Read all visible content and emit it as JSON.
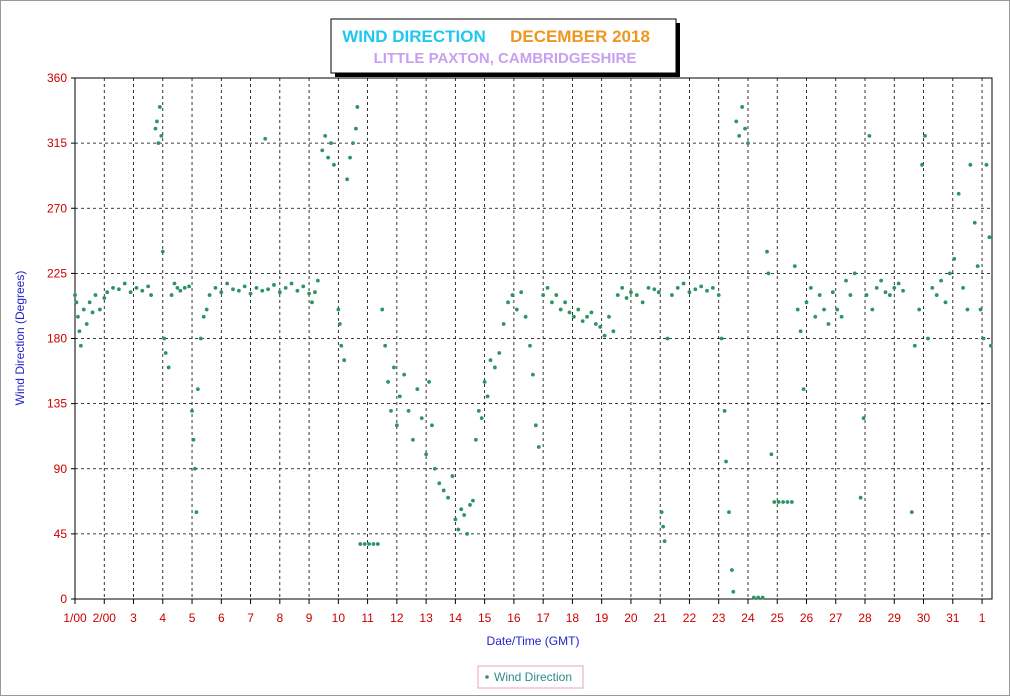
{
  "chart_data": {
    "type": "scatter",
    "title": "WIND DIRECTION",
    "period": "DECEMBER 2018",
    "subtitle": "LITTLE PAXTON, CAMBRIDGESHIRE",
    "title_color": "#1ec8f0",
    "period_color": "#f0961e",
    "subtitle_color": "#c8a0f0",
    "xlabel": "Date/Time (GMT)",
    "ylabel": "Wind Direction (Degrees)",
    "xlim": [
      1,
      32.34
    ],
    "ylim": [
      0,
      360
    ],
    "xticks": [
      {
        "value": 1,
        "label": "1/00"
      },
      {
        "value": 2,
        "label": "2/00"
      },
      3,
      4,
      5,
      6,
      7,
      8,
      9,
      10,
      11,
      12,
      13,
      14,
      15,
      16,
      17,
      18,
      19,
      20,
      21,
      22,
      23,
      24,
      25,
      26,
      27,
      28,
      29,
      30,
      31,
      {
        "value": 32,
        "label": "1"
      }
    ],
    "yticks": [
      0,
      45,
      90,
      135,
      180,
      225,
      270,
      315,
      360
    ],
    "grid": true,
    "legend": "bottom",
    "x": [
      1.0,
      1.05,
      1.1,
      1.15,
      1.2,
      1.3,
      1.4,
      1.5,
      1.6,
      1.7,
      1.85,
      2.0,
      2.1,
      2.3,
      2.5,
      2.7,
      2.9,
      3.1,
      3.3,
      3.5,
      3.6,
      3.75,
      3.8,
      3.85,
      3.9,
      3.95,
      4.0,
      4.05,
      4.1,
      4.2,
      4.3,
      4.4,
      4.5,
      4.6,
      4.75,
      4.9,
      5.0,
      5.05,
      5.1,
      5.15,
      5.2,
      5.3,
      5.4,
      5.5,
      5.6,
      5.8,
      6.0,
      6.2,
      6.4,
      6.6,
      6.8,
      7.0,
      7.2,
      7.4,
      7.5,
      7.6,
      7.8,
      8.0,
      8.2,
      8.4,
      8.6,
      8.8,
      9.0,
      9.1,
      9.2,
      9.3,
      9.45,
      9.55,
      9.65,
      9.75,
      9.85,
      10.0,
      10.05,
      10.1,
      10.2,
      10.3,
      10.4,
      10.5,
      10.6,
      10.65,
      10.75,
      10.9,
      11.05,
      11.2,
      11.35,
      11.5,
      11.6,
      11.7,
      11.8,
      11.9,
      12.0,
      12.1,
      12.25,
      12.4,
      12.55,
      12.7,
      12.85,
      13.0,
      13.1,
      13.2,
      13.3,
      13.45,
      13.6,
      13.75,
      13.9,
      14.0,
      14.1,
      14.2,
      14.3,
      14.4,
      14.5,
      14.6,
      14.7,
      14.8,
      14.9,
      15.0,
      15.1,
      15.2,
      15.35,
      15.5,
      15.65,
      15.8,
      15.95,
      16.1,
      16.25,
      16.4,
      16.55,
      16.65,
      16.75,
      16.85,
      17.0,
      17.15,
      17.3,
      17.45,
      17.6,
      17.75,
      17.9,
      18.05,
      18.2,
      18.35,
      18.5,
      18.65,
      18.8,
      18.95,
      19.1,
      19.25,
      19.4,
      19.55,
      19.7,
      19.85,
      20.0,
      20.2,
      20.4,
      20.6,
      20.8,
      20.95,
      21.05,
      21.1,
      21.15,
      21.25,
      21.4,
      21.6,
      21.8,
      22.0,
      22.2,
      22.4,
      22.6,
      22.8,
      23.0,
      23.1,
      23.2,
      23.25,
      23.35,
      23.45,
      23.5,
      23.6,
      23.7,
      23.8,
      23.9,
      24.0,
      24.2,
      24.35,
      24.5,
      24.65,
      24.7,
      24.8,
      24.9,
      25.05,
      25.2,
      25.35,
      25.5,
      25.6,
      25.7,
      25.8,
      25.9,
      26.0,
      26.15,
      26.3,
      26.45,
      26.6,
      26.75,
      26.9,
      27.05,
      27.2,
      27.35,
      27.5,
      27.65,
      27.85,
      27.95,
      28.05,
      28.15,
      28.25,
      28.4,
      28.55,
      28.7,
      28.85,
      29.0,
      29.15,
      29.3,
      29.6,
      29.7,
      29.85,
      29.95,
      30.05,
      30.15,
      30.3,
      30.45,
      30.6,
      30.75,
      30.9,
      31.05,
      31.2,
      31.35,
      31.5,
      31.6,
      31.75,
      31.85,
      31.95,
      32.05,
      32.15,
      32.25,
      32.3
    ],
    "series": [
      {
        "name": "Wind Direction",
        "color": "#2e9464",
        "values": [
          210,
          205,
          195,
          185,
          175,
          200,
          190,
          205,
          198,
          210,
          200,
          208,
          212,
          215,
          214,
          218,
          212,
          215,
          213,
          216,
          210,
          325,
          330,
          315,
          340,
          320,
          240,
          180,
          170,
          160,
          210,
          218,
          215,
          213,
          215,
          216,
          130,
          110,
          90,
          60,
          145,
          180,
          195,
          200,
          210,
          215,
          212,
          218,
          214,
          213,
          216,
          211,
          215,
          213,
          318,
          214,
          217,
          212,
          215,
          218,
          213,
          216,
          211,
          205,
          212,
          220,
          310,
          320,
          305,
          315,
          300,
          200,
          190,
          175,
          165,
          290,
          305,
          315,
          325,
          340,
          38,
          38,
          38,
          38,
          38,
          200,
          175,
          150,
          130,
          160,
          120,
          140,
          155,
          130,
          110,
          145,
          125,
          100,
          150,
          120,
          90,
          80,
          75,
          70,
          85,
          55,
          48,
          62,
          58,
          45,
          65,
          68,
          110,
          130,
          125,
          150,
          140,
          165,
          160,
          170,
          190,
          205,
          210,
          200,
          212,
          195,
          175,
          155,
          120,
          105,
          210,
          215,
          205,
          210,
          200,
          205,
          198,
          195,
          200,
          192,
          195,
          198,
          190,
          188,
          182,
          195,
          185,
          210,
          215,
          208,
          212,
          210,
          205,
          215,
          214,
          212,
          60,
          50,
          40,
          180,
          210,
          215,
          218,
          212,
          214,
          216,
          213,
          215,
          210,
          180,
          130,
          95,
          60,
          20,
          5,
          330,
          320,
          340,
          325,
          315,
          1,
          1,
          1,
          240,
          225,
          100,
          67,
          67,
          67,
          67,
          67,
          230,
          200,
          185,
          145,
          205,
          215,
          195,
          210,
          200,
          190,
          212,
          200,
          195,
          220,
          210,
          225,
          70,
          125,
          210,
          320,
          200,
          215,
          220,
          212,
          210,
          215,
          218,
          213,
          60,
          175,
          200,
          300,
          320,
          180,
          215,
          210,
          220,
          205,
          225,
          235,
          280,
          215,
          200,
          300,
          260,
          230,
          200,
          180,
          300,
          250,
          175
        ]
      }
    ]
  }
}
